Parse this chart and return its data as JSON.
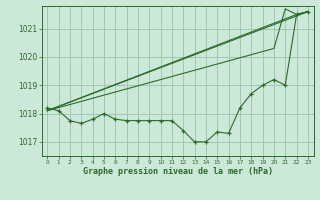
{
  "bg_color": "#cce8d8",
  "line_color": "#2d6a2d",
  "grid_color": "#99c4aa",
  "xlabel": "Graphe pression niveau de la mer (hPa)",
  "ylim": [
    1016.5,
    1021.8
  ],
  "xlim": [
    -0.5,
    23.5
  ],
  "yticks": [
    1017,
    1018,
    1019,
    1020,
    1021
  ],
  "xticks": [
    0,
    1,
    2,
    3,
    4,
    5,
    6,
    7,
    8,
    9,
    10,
    11,
    12,
    13,
    14,
    15,
    16,
    17,
    18,
    19,
    20,
    21,
    22,
    23
  ],
  "line1_x": [
    0,
    1,
    2,
    3,
    4,
    5,
    6,
    7,
    8,
    9,
    10,
    11,
    12,
    13,
    14,
    15,
    16,
    17,
    18,
    19,
    20,
    21,
    22,
    23
  ],
  "line1_y": [
    1018.2,
    1018.1,
    1017.75,
    1017.65,
    1017.8,
    1018.0,
    1017.8,
    1017.75,
    1017.75,
    1017.75,
    1017.75,
    1017.75,
    1017.4,
    1017.0,
    1017.0,
    1017.35,
    1017.3,
    1018.2,
    1018.7,
    1019.0,
    1019.2,
    1019.0,
    1021.5,
    1021.6
  ],
  "line2_x": [
    0,
    23
  ],
  "line2_y": [
    1018.1,
    1021.6
  ],
  "line3_x": [
    0,
    22,
    23
  ],
  "line3_y": [
    1018.1,
    1021.5,
    1021.6
  ],
  "line4_x": [
    0,
    20,
    21,
    22,
    23
  ],
  "line4_y": [
    1018.1,
    1020.3,
    1021.7,
    1021.5,
    1021.6
  ]
}
